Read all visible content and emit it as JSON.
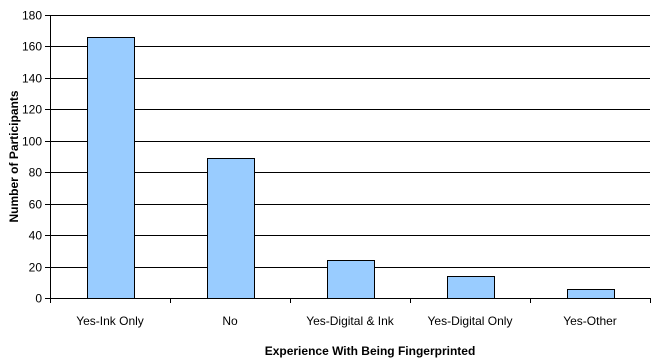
{
  "chart_data": {
    "type": "bar",
    "xlabel": "Experience With Being Fingerprinted",
    "ylabel": "Number of Participants",
    "categories": [
      "Yes-Ink Only",
      "No",
      "Yes-Digital & Ink",
      "Yes-Digital Only",
      "Yes-Other"
    ],
    "values": [
      166,
      89,
      24,
      14,
      6
    ],
    "ylim": [
      0,
      180
    ],
    "yticks": [
      "0",
      "20",
      "40",
      "60",
      "80",
      "100",
      "120",
      "140",
      "160",
      "180"
    ],
    "grid": true,
    "legend": "none",
    "colors": {
      "bar_fill": "#99CCFF",
      "bar_stroke": "#000000",
      "grid": "#000000",
      "axis": "#000000"
    }
  }
}
